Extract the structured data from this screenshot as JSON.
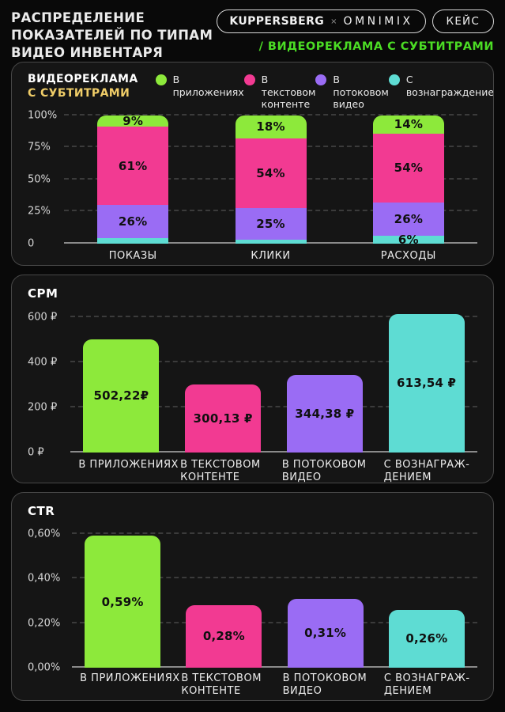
{
  "header": {
    "title_lines": [
      "РАСПРЕДЕЛЕНИЕ",
      "ПОКАЗАТЕЛЕЙ ПО ТИПАМ",
      "ВИДЕО ИНВЕНТАРЯ"
    ],
    "brand_badge": {
      "left": "KUPPERSBERG",
      "separator": "×",
      "right": "OMNIMIX"
    },
    "case_badge": "КЕЙС",
    "subtitle": "/ ВИДЕОРЕКЛАМА С СУБТИТРАМИ"
  },
  "colors": {
    "green": "#8DE93B",
    "pink": "#F23A92",
    "purple": "#9A6CF4",
    "teal": "#5EDCD3",
    "yellow": "#F0CD68",
    "accent_green": "#4BDC24",
    "panel_bg": "#151515",
    "panel_border": "#474747",
    "grid": "#3B3B3B",
    "baseline": "#8A8A8A",
    "tick_text": "#D6D6D6",
    "label_text": "#EDEDED",
    "bar_text": "#101010"
  },
  "legend": [
    {
      "color": "green",
      "lines": [
        "В приложениях"
      ]
    },
    {
      "color": "pink",
      "lines": [
        "В текстовом",
        "контенте"
      ]
    },
    {
      "color": "purple",
      "lines": [
        "В потоковом",
        "видео"
      ]
    },
    {
      "color": "teal",
      "lines": [
        "С вознаграждением"
      ]
    }
  ],
  "chart_data": [
    {
      "type": "bar",
      "stacked": true,
      "title_lines": [
        "ВИДЕОРЕКЛАМА",
        "С СУБТИТРАМИ"
      ],
      "categories": [
        "ПОКАЗЫ",
        "КЛИКИ",
        "РАСХОДЫ"
      ],
      "series": [
        {
          "name": "В приложениях",
          "color": "green",
          "values": [
            9,
            18,
            14
          ],
          "labels": [
            "9%",
            "18%",
            "14%"
          ]
        },
        {
          "name": "В текстовом контенте",
          "color": "pink",
          "values": [
            61,
            54,
            54
          ],
          "labels": [
            "61%",
            "54%",
            "54%"
          ]
        },
        {
          "name": "В потоковом видео",
          "color": "purple",
          "values": [
            26,
            25,
            26
          ],
          "labels": [
            "26%",
            "25%",
            "26%"
          ]
        },
        {
          "name": "С вознаграждением",
          "color": "teal",
          "values": [
            4,
            3,
            6
          ],
          "labels": [
            "",
            "",
            "6%"
          ]
        }
      ],
      "yticks": [
        {
          "value": 100,
          "label": "100%"
        },
        {
          "value": 75,
          "label": "75%"
        },
        {
          "value": 50,
          "label": "50%"
        },
        {
          "value": 25,
          "label": "25%"
        },
        {
          "value": 0,
          "label": "0"
        }
      ],
      "ylim": [
        0,
        100
      ],
      "unit": "%",
      "grid": "dashed",
      "legend_position": "top"
    },
    {
      "type": "bar",
      "title": "CPM",
      "categories": [
        [
          "В ПРИЛОЖЕНИЯХ"
        ],
        [
          "В ТЕКСТОВОМ",
          "КОНТЕНТЕ"
        ],
        [
          "В ПОТОКОВОМ",
          "ВИДЕО"
        ],
        [
          "С ВОЗНАГРАЖ-",
          "ДЕНИЕМ"
        ]
      ],
      "values": [
        502.22,
        300.13,
        344.38,
        613.54
      ],
      "labels": [
        "502,22₽",
        "300,13 ₽",
        "344,38 ₽",
        "613,54 ₽"
      ],
      "colors": [
        "green",
        "pink",
        "purple",
        "teal"
      ],
      "yticks": [
        {
          "value": 600,
          "label": "600 ₽"
        },
        {
          "value": 400,
          "label": "400 ₽"
        },
        {
          "value": 200,
          "label": "200 ₽"
        },
        {
          "value": 0,
          "label": "0 ₽"
        }
      ],
      "ylim": [
        0,
        630
      ],
      "unit": "₽",
      "grid": "dashed"
    },
    {
      "type": "bar",
      "title": "CTR",
      "categories": [
        [
          "В ПРИЛОЖЕНИЯХ"
        ],
        [
          "В ТЕКСТОВОМ",
          "КОНТЕНТЕ"
        ],
        [
          "В ПОТОКОВОМ",
          "ВИДЕО"
        ],
        [
          "С ВОЗНАГРАЖ-",
          "ДЕНИЕМ"
        ]
      ],
      "values": [
        0.59,
        0.28,
        0.31,
        0.26
      ],
      "labels": [
        "0,59%",
        "0,28%",
        "0,31%",
        "0,26%"
      ],
      "colors": [
        "green",
        "pink",
        "purple",
        "teal"
      ],
      "yticks": [
        {
          "value": 0.6,
          "label": "0,60%"
        },
        {
          "value": 0.4,
          "label": "0,40%"
        },
        {
          "value": 0.2,
          "label": "0,20%"
        },
        {
          "value": 0,
          "label": "0,00%"
        }
      ],
      "ylim": [
        0,
        0.62
      ],
      "unit": "%",
      "grid": "dashed"
    }
  ]
}
